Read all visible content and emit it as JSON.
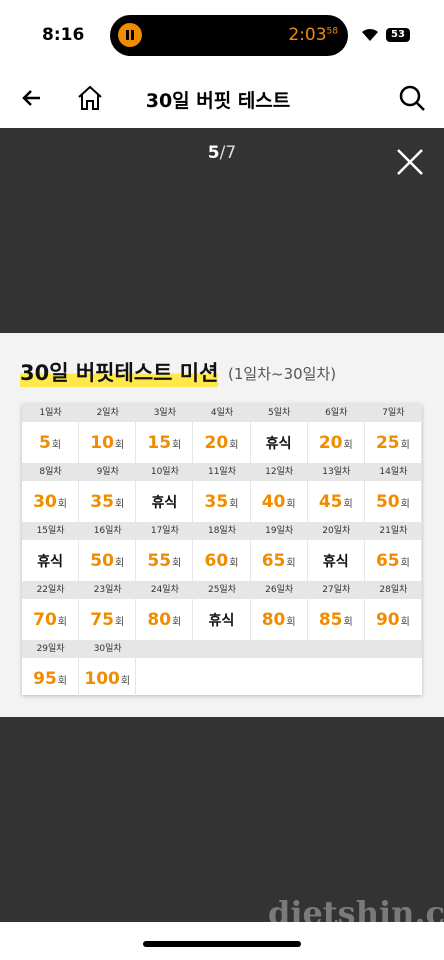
{
  "status_bar": {
    "time": "8:16",
    "timer": "2:03",
    "timer_seconds": "58",
    "battery": "53"
  },
  "header": {
    "title": "30일 버핏 테스트"
  },
  "viewer": {
    "current": "5",
    "total": "/7"
  },
  "card": {
    "title": "30일 버핏테스트 미션",
    "subtitle": "(1일차~30일차)",
    "days": [
      {
        "day": "1일차",
        "count": "5",
        "unit": "회"
      },
      {
        "day": "2일차",
        "count": "10",
        "unit": "회"
      },
      {
        "day": "3일차",
        "count": "15",
        "unit": "회"
      },
      {
        "day": "4일차",
        "count": "20",
        "unit": "회"
      },
      {
        "day": "5일차",
        "rest": "휴식"
      },
      {
        "day": "6일차",
        "count": "20",
        "unit": "회"
      },
      {
        "day": "7일차",
        "count": "25",
        "unit": "회"
      },
      {
        "day": "8일차",
        "count": "30",
        "unit": "회"
      },
      {
        "day": "9일차",
        "count": "35",
        "unit": "회"
      },
      {
        "day": "10일차",
        "rest": "휴식"
      },
      {
        "day": "11일차",
        "count": "35",
        "unit": "회"
      },
      {
        "day": "12일차",
        "count": "40",
        "unit": "회"
      },
      {
        "day": "13일차",
        "count": "45",
        "unit": "회"
      },
      {
        "day": "14일차",
        "count": "50",
        "unit": "회"
      },
      {
        "day": "15일차",
        "rest": "휴식"
      },
      {
        "day": "16일차",
        "count": "50",
        "unit": "회"
      },
      {
        "day": "17일차",
        "count": "55",
        "unit": "회"
      },
      {
        "day": "18일차",
        "count": "60",
        "unit": "회"
      },
      {
        "day": "19일차",
        "count": "65",
        "unit": "회"
      },
      {
        "day": "20일차",
        "rest": "휴식"
      },
      {
        "day": "21일차",
        "count": "65",
        "unit": "회"
      },
      {
        "day": "22일차",
        "count": "70",
        "unit": "회"
      },
      {
        "day": "23일차",
        "count": "75",
        "unit": "회"
      },
      {
        "day": "24일차",
        "count": "80",
        "unit": "회"
      },
      {
        "day": "25일차",
        "rest": "휴식"
      },
      {
        "day": "26일차",
        "count": "80",
        "unit": "회"
      },
      {
        "day": "27일차",
        "count": "85",
        "unit": "회"
      },
      {
        "day": "28일차",
        "count": "90",
        "unit": "회"
      },
      {
        "day": "29일차",
        "count": "95",
        "unit": "회"
      },
      {
        "day": "30일차",
        "count": "100",
        "unit": "회"
      }
    ]
  },
  "watermark": "dietshin.com"
}
